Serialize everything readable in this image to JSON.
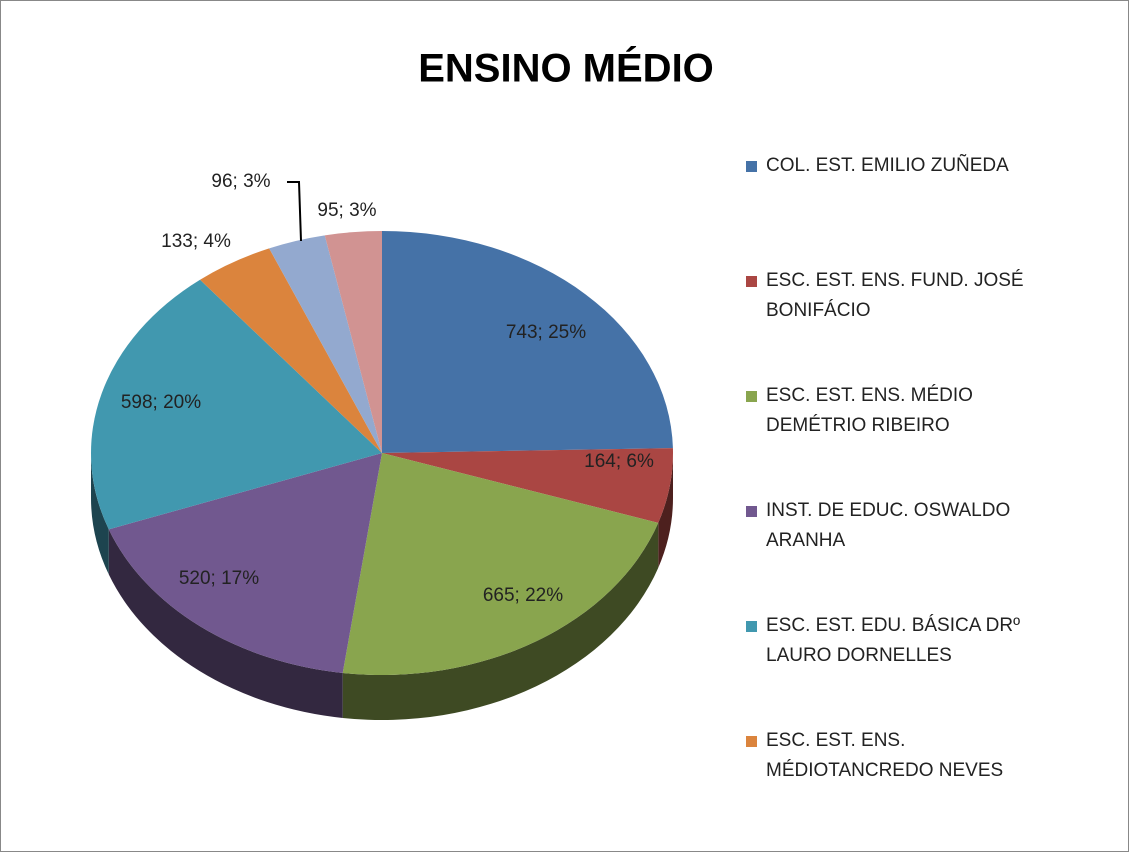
{
  "chart_data": {
    "type": "pie",
    "title": "ENSINO MÉDIO",
    "categories": [
      "COL. EST. EMILIO ZUÑEDA",
      "ESC. EST. ENS. FUND. JOSÉ BONIFÁCIO",
      "ESC. EST. ENS. MÉDIO DEMÉTRIO RIBEIRO",
      "INST. DE EDUC. OSWALDO ARANHA",
      "ESC. EST. EDU. BÁSICA DRº LAURO DORNELLES",
      "ESC. EST. ENS. MÉDIOTANCREDO NEVES",
      null,
      null
    ],
    "values": [
      743,
      164,
      665,
      520,
      598,
      133,
      96,
      95
    ],
    "value_labels": [
      "743; 25%",
      "164; 6%",
      "665; 22%",
      "520; 17%",
      "598; 20%",
      "133; 4%",
      "96; 3%",
      "95; 3%"
    ],
    "colors": [
      "#4572a7",
      "#aa4643",
      "#89a54e",
      "#71588f",
      "#4198af",
      "#db843d",
      "#93a9cf",
      "#d19392"
    ],
    "legend": "right"
  }
}
